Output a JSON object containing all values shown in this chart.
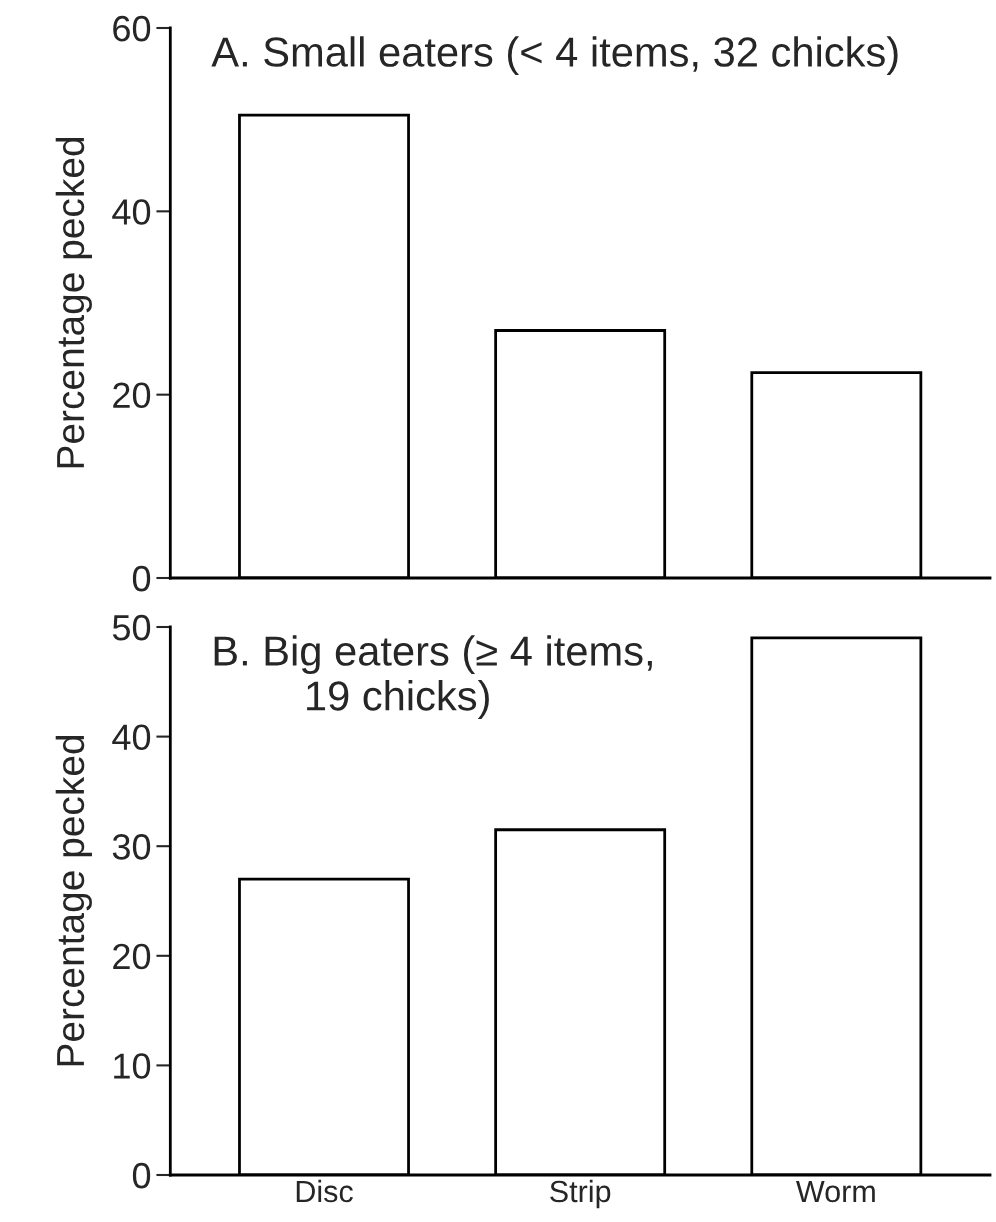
{
  "chart_data": [
    {
      "type": "bar",
      "title": "A. Small eaters (< 4 items, 32 chicks)",
      "ylabel": "Percentage pecked",
      "categories": [
        null,
        null,
        null
      ],
      "values": [
        50.5,
        27.0,
        22.4
      ],
      "color": "#ffffff",
      "ylim": [
        0,
        60
      ],
      "yticks": [
        0,
        20,
        40,
        60
      ],
      "tick_labels": "y",
      "grid": false
    },
    {
      "type": "bar",
      "title": "B. Big eaters (≥ 4 items,\n        19 chicks)",
      "ylabel": "Percentage pecked",
      "categories": [
        "Disc",
        "Strip",
        "Worm"
      ],
      "values": [
        27.0,
        31.5,
        49.0
      ],
      "color": "#ffffff",
      "ylim": [
        0,
        50
      ],
      "yticks": [
        0,
        10,
        20,
        30,
        40,
        50
      ],
      "grid": false
    }
  ]
}
